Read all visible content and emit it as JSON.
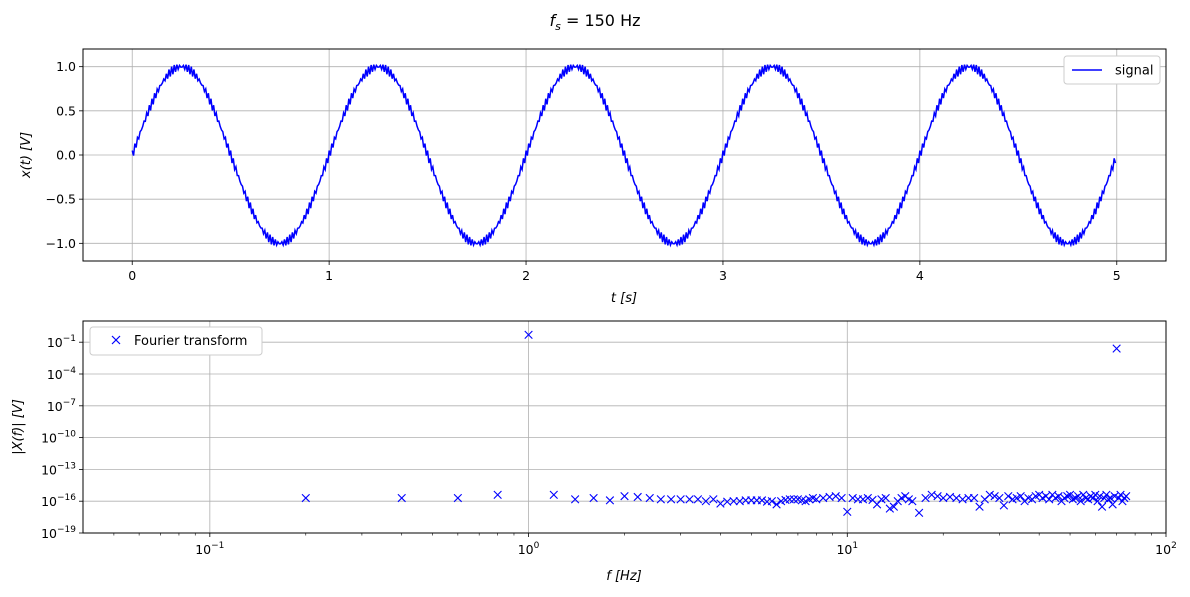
{
  "figure": {
    "title": "f_s = 150 Hz",
    "title_sub": "s",
    "title_rest": " = 150 Hz"
  },
  "chart_data": [
    {
      "type": "line",
      "xlabel": "t [s]",
      "ylabel": "x(t) [V]",
      "xlim": [
        -0.25,
        5.25
      ],
      "ylim": [
        -1.2,
        1.2
      ],
      "xticks": [
        0,
        1,
        2,
        3,
        4,
        5
      ],
      "xtick_labels": [
        "0",
        "1",
        "2",
        "3",
        "4",
        "5"
      ],
      "yticks": [
        -1.0,
        -0.5,
        0.0,
        0.5,
        1.0
      ],
      "ytick_labels": [
        "−1.0",
        "−0.5",
        "0.0",
        "0.5",
        "1.0"
      ],
      "grid": true,
      "legend_position": "top-right",
      "series": [
        {
          "name": "signal",
          "color": "#0000ff",
          "x_range": [
            0,
            5
          ],
          "sample_rate_hz": 150,
          "description_values": {
            "main_amplitude": 1.0,
            "main_frequency_hz": 1,
            "ripple_amplitude": 0.05,
            "ripple_frequency_hz": 70
          }
        }
      ]
    },
    {
      "type": "scatter",
      "xlabel": "f [Hz]",
      "ylabel": "|X(f)| [V]",
      "xscale": "log",
      "yscale": "log",
      "xlim": [
        0.04,
        100
      ],
      "ylim": [
        1e-19,
        10.0
      ],
      "xticks": [
        0.1,
        1,
        10,
        100
      ],
      "xtick_labels": [
        "10−1",
        "100",
        "101",
        "102"
      ],
      "yticks": [
        1e-19,
        1e-16,
        1e-13,
        1e-10,
        1e-07,
        0.0001,
        0.1
      ],
      "ytick_labels": [
        "10−19",
        "10−16",
        "10−13",
        "10−10",
        "10−7",
        "10−4",
        "10−1"
      ],
      "grid": true,
      "legend_position": "top-left",
      "series": [
        {
          "name": "Fourier transform",
          "color": "#0000ff",
          "marker": "x",
          "peaks": [
            {
              "x": 1.0,
              "y": 0.5
            },
            {
              "x": 70.0,
              "y": 0.025
            }
          ],
          "noise_floor_points": [
            {
              "x": 0.2,
              "y": 2e-16
            },
            {
              "x": 0.4,
              "y": 2e-16
            },
            {
              "x": 0.6,
              "y": 2e-16
            },
            {
              "x": 0.8,
              "y": 4e-16
            },
            {
              "x": 1.2,
              "y": 4e-16
            },
            {
              "x": 1.4,
              "y": 1.5e-16
            },
            {
              "x": 1.6,
              "y": 2e-16
            },
            {
              "x": 1.8,
              "y": 1.2e-16
            },
            {
              "x": 2.0,
              "y": 3e-16
            },
            {
              "x": 2.2,
              "y": 2.5e-16
            },
            {
              "x": 2.4,
              "y": 2e-16
            },
            {
              "x": 2.6,
              "y": 1.5e-16
            },
            {
              "x": 2.8,
              "y": 1.5e-16
            },
            {
              "x": 3.0,
              "y": 1.5e-16
            },
            {
              "x": 3.2,
              "y": 1.5e-16
            },
            {
              "x": 3.4,
              "y": 1.5e-16
            },
            {
              "x": 3.6,
              "y": 1e-16
            },
            {
              "x": 3.8,
              "y": 1.5e-16
            },
            {
              "x": 4.0,
              "y": 6e-17
            },
            {
              "x": 4.2,
              "y": 9e-17
            },
            {
              "x": 4.4,
              "y": 1e-16
            },
            {
              "x": 4.6,
              "y": 1e-16
            },
            {
              "x": 4.8,
              "y": 1.2e-16
            },
            {
              "x": 5.0,
              "y": 1.2e-16
            },
            {
              "x": 5.2,
              "y": 1.2e-16
            },
            {
              "x": 5.4,
              "y": 1.2e-16
            },
            {
              "x": 5.6,
              "y": 9e-17
            },
            {
              "x": 5.8,
              "y": 1e-16
            },
            {
              "x": 6.0,
              "y": 5e-17
            },
            {
              "x": 6.2,
              "y": 1e-16
            },
            {
              "x": 6.4,
              "y": 1.3e-16
            },
            {
              "x": 6.6,
              "y": 1.5e-16
            },
            {
              "x": 6.8,
              "y": 1.5e-16
            },
            {
              "x": 7.0,
              "y": 1.5e-16
            },
            {
              "x": 7.2,
              "y": 1.2e-16
            },
            {
              "x": 7.4,
              "y": 1e-16
            },
            {
              "x": 7.6,
              "y": 1.5e-16
            },
            {
              "x": 7.8,
              "y": 2e-16
            },
            {
              "x": 8.0,
              "y": 1.5e-16
            },
            {
              "x": 8.4,
              "y": 2e-16
            },
            {
              "x": 8.8,
              "y": 2.5e-16
            },
            {
              "x": 9.2,
              "y": 3e-16
            },
            {
              "x": 9.6,
              "y": 2e-16
            },
            {
              "x": 10.0,
              "y": 1e-17
            },
            {
              "x": 10.4,
              "y": 2e-16
            },
            {
              "x": 10.8,
              "y": 1.5e-16
            },
            {
              "x": 11.2,
              "y": 1.5e-16
            },
            {
              "x": 11.6,
              "y": 2e-16
            },
            {
              "x": 12.0,
              "y": 1.3e-16
            },
            {
              "x": 12.4,
              "y": 5e-17
            },
            {
              "x": 12.8,
              "y": 1.5e-16
            },
            {
              "x": 13.2,
              "y": 2e-16
            },
            {
              "x": 13.6,
              "y": 2e-17
            },
            {
              "x": 14.0,
              "y": 3e-17
            },
            {
              "x": 14.4,
              "y": 1e-16
            },
            {
              "x": 14.8,
              "y": 2e-16
            },
            {
              "x": 15.2,
              "y": 3e-16
            },
            {
              "x": 15.6,
              "y": 1.5e-16
            },
            {
              "x": 16.0,
              "y": 1e-16
            },
            {
              "x": 16.8,
              "y": 8e-18
            },
            {
              "x": 17.6,
              "y": 2e-16
            },
            {
              "x": 18.4,
              "y": 4e-16
            },
            {
              "x": 19.2,
              "y": 3e-16
            },
            {
              "x": 20.0,
              "y": 2e-16
            },
            {
              "x": 21.0,
              "y": 2.5e-16
            },
            {
              "x": 22.0,
              "y": 2e-16
            },
            {
              "x": 23.0,
              "y": 1.5e-16
            },
            {
              "x": 24.0,
              "y": 2e-16
            },
            {
              "x": 25.0,
              "y": 2e-16
            },
            {
              "x": 26.0,
              "y": 3e-17
            },
            {
              "x": 27.0,
              "y": 1.5e-16
            },
            {
              "x": 28.0,
              "y": 4e-16
            },
            {
              "x": 29.0,
              "y": 3e-16
            },
            {
              "x": 30.0,
              "y": 2e-16
            },
            {
              "x": 31.0,
              "y": 4e-17
            },
            {
              "x": 32.0,
              "y": 3e-16
            },
            {
              "x": 33.0,
              "y": 1.5e-16
            },
            {
              "x": 34.0,
              "y": 2e-16
            },
            {
              "x": 35.0,
              "y": 3e-16
            },
            {
              "x": 36.0,
              "y": 1e-16
            },
            {
              "x": 37.0,
              "y": 2e-16
            },
            {
              "x": 38.0,
              "y": 1.5e-16
            },
            {
              "x": 39.0,
              "y": 3e-16
            },
            {
              "x": 40.0,
              "y": 4e-16
            },
            {
              "x": 41.0,
              "y": 2e-16
            },
            {
              "x": 42.0,
              "y": 3e-16
            },
            {
              "x": 43.0,
              "y": 1.5e-16
            },
            {
              "x": 44.0,
              "y": 4e-16
            },
            {
              "x": 45.0,
              "y": 2e-16
            },
            {
              "x": 46.0,
              "y": 3e-16
            },
            {
              "x": 47.0,
              "y": 1e-16
            },
            {
              "x": 48.0,
              "y": 2e-16
            },
            {
              "x": 49.0,
              "y": 3e-16
            },
            {
              "x": 50.0,
              "y": 4e-16
            },
            {
              "x": 51.0,
              "y": 1.5e-16
            },
            {
              "x": 52.0,
              "y": 2e-16
            },
            {
              "x": 53.0,
              "y": 3e-16
            },
            {
              "x": 54.0,
              "y": 1e-16
            },
            {
              "x": 55.0,
              "y": 4e-16
            },
            {
              "x": 56.0,
              "y": 2e-16
            },
            {
              "x": 57.0,
              "y": 1.5e-16
            },
            {
              "x": 58.0,
              "y": 3e-16
            },
            {
              "x": 59.0,
              "y": 2e-16
            },
            {
              "x": 60.0,
              "y": 4e-16
            },
            {
              "x": 61.0,
              "y": 1e-16
            },
            {
              "x": 62.0,
              "y": 3e-16
            },
            {
              "x": 63.0,
              "y": 3e-17
            },
            {
              "x": 64.0,
              "y": 2e-16
            },
            {
              "x": 65.0,
              "y": 4e-16
            },
            {
              "x": 66.0,
              "y": 1.5e-16
            },
            {
              "x": 67.0,
              "y": 2e-16
            },
            {
              "x": 68.0,
              "y": 5e-17
            },
            {
              "x": 69.0,
              "y": 3e-16
            },
            {
              "x": 71.0,
              "y": 2e-16
            },
            {
              "x": 72.0,
              "y": 4e-16
            },
            {
              "x": 73.0,
              "y": 1e-16
            },
            {
              "x": 74.0,
              "y": 2e-16
            },
            {
              "x": 75.0,
              "y": 3e-16
            }
          ]
        }
      ]
    }
  ]
}
